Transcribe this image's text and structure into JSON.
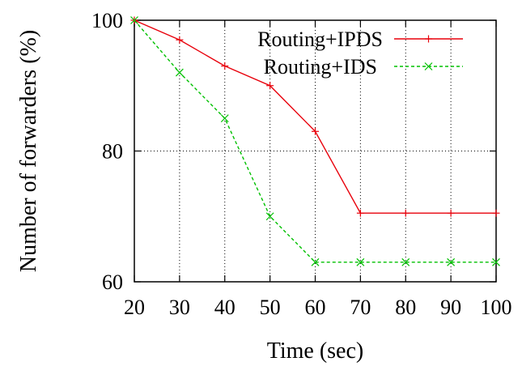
{
  "chart_data": {
    "type": "line",
    "title": "",
    "xlabel": "Time (sec)",
    "ylabel": "Number of forwarders (%)",
    "x": [
      20,
      30,
      40,
      50,
      60,
      70,
      80,
      90,
      100
    ],
    "xlim": [
      20,
      100
    ],
    "ylim": [
      60,
      100
    ],
    "x_ticks": [
      "20",
      "30",
      "40",
      "50",
      "60",
      "70",
      "80",
      "90",
      "100"
    ],
    "y_ticks": [
      "60",
      "80",
      "100"
    ],
    "y_tick_values": [
      60,
      80,
      100
    ],
    "grid": true,
    "legend_position": "top-right",
    "series": [
      {
        "name": "Routing+IPDS",
        "color": "#e8000b",
        "marker": "plus",
        "values": [
          100,
          97,
          93,
          90,
          83,
          70.5,
          70.5,
          70.5,
          70.5
        ]
      },
      {
        "name": "Routing+IDS",
        "color": "#00c000",
        "marker": "x",
        "dashed": true,
        "values": [
          100,
          92,
          85,
          70,
          63,
          63,
          63,
          63,
          63
        ]
      }
    ]
  }
}
